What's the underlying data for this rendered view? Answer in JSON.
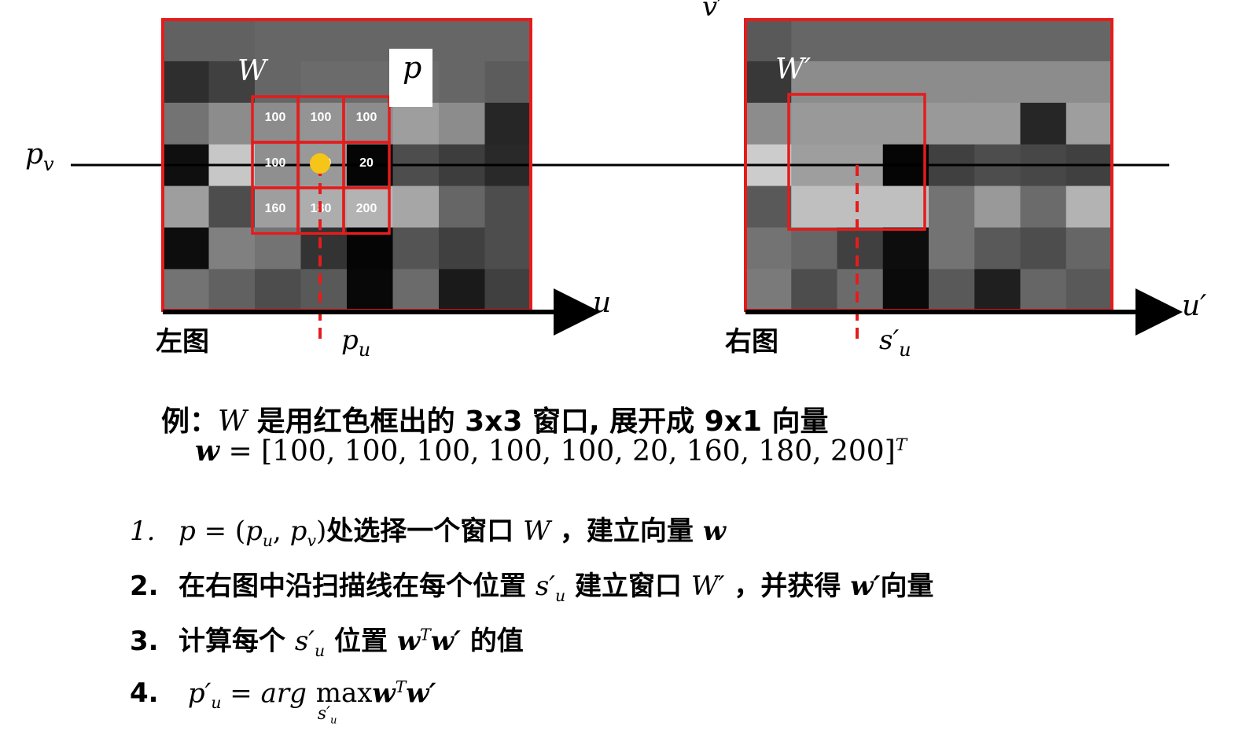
{
  "colors": {
    "frame": "#e41c1c",
    "axis": "#000000",
    "marker": "#f5c518",
    "background": "#ffffff"
  },
  "left_panel": {
    "window_label": "W",
    "point_label": "p",
    "caption": "左图",
    "axis_label": "u",
    "row_label": "p",
    "row_label_sub": "v",
    "col_label": "p",
    "col_label_sub": "u",
    "window_values": [
      "100",
      "100",
      "100",
      "100",
      "100",
      "20",
      "160",
      "180",
      "200"
    ],
    "grid_gray": [
      [
        0.38,
        0.38,
        0.4,
        0.4,
        0.4,
        0.4,
        0.4,
        0.4
      ],
      [
        0.18,
        0.25,
        0.4,
        0.42,
        0.42,
        0.42,
        0.4,
        0.36
      ],
      [
        0.45,
        0.55,
        0.55,
        0.58,
        0.55,
        0.62,
        0.55,
        0.15
      ],
      [
        0.06,
        0.78,
        0.56,
        0.6,
        0.02,
        0.3,
        0.24,
        0.16
      ],
      [
        0.62,
        0.3,
        0.62,
        0.68,
        0.7,
        0.65,
        0.4,
        0.3
      ],
      [
        0.05,
        0.5,
        0.45,
        0.2,
        0.02,
        0.33,
        0.25,
        0.3
      ],
      [
        0.45,
        0.38,
        0.3,
        0.35,
        0.03,
        0.42,
        0.1,
        0.25
      ]
    ]
  },
  "right_panel": {
    "window_label": "W′",
    "caption": "右图",
    "axis_label": "u′",
    "top_label": "v′",
    "scan_label": "s′",
    "scan_label_sub": "u",
    "grid_gray": [
      [
        0.35,
        0.4,
        0.4,
        0.4,
        0.4,
        0.4,
        0.4,
        0.4
      ],
      [
        0.22,
        0.55,
        0.55,
        0.55,
        0.55,
        0.55,
        0.55,
        0.55
      ],
      [
        0.55,
        0.6,
        0.6,
        0.6,
        0.6,
        0.6,
        0.15,
        0.62
      ],
      [
        0.8,
        0.62,
        0.62,
        0.02,
        0.25,
        0.3,
        0.28,
        0.25
      ],
      [
        0.35,
        0.75,
        0.75,
        0.75,
        0.45,
        0.6,
        0.42,
        0.7
      ],
      [
        0.45,
        0.4,
        0.25,
        0.05,
        0.45,
        0.35,
        0.3,
        0.4
      ],
      [
        0.48,
        0.3,
        0.42,
        0.04,
        0.35,
        0.12,
        0.4,
        0.35
      ]
    ]
  },
  "example": {
    "prefix": "例：",
    "W": "W",
    "text": "是用红色框出的 3x3 窗口, 展开成 9x1 向量",
    "w_symbol": "w",
    "equals": " = ",
    "vector": "[100, 100, 100, 100, 100, 20, 160, 180, 200]",
    "transpose": "T"
  },
  "steps": [
    {
      "num": "1.",
      "math_a": "p",
      "eq": " = (",
      "pu": "p",
      "pu_sub": "u",
      "comma": ", ",
      "pv": "p",
      "pv_sub": "v",
      "close": ")",
      "text1": "处选择一个窗口",
      "W": "W",
      "text2": "，建立向量",
      "w": "w"
    },
    {
      "num": "2.",
      "text1": "在右图中沿扫描线在每个位置",
      "s": "s′",
      "s_sub": "u",
      "text2": "建立窗口",
      "W": "W′",
      "text3": "，并获得",
      "w": "w′",
      "text4": "向量"
    },
    {
      "num": "3.",
      "text1": "计算每个",
      "s": "s′",
      "s_sub": "u",
      "text2": "位置",
      "w": "w",
      "T": "T",
      "w2": "w′",
      "text3": "的值"
    },
    {
      "num": "4.",
      "p": "p′",
      "p_sub": "u",
      "eq": " = ",
      "arg": "arg",
      "max": "max",
      "under": "s′",
      "under_sub": "u",
      "w": "w",
      "T": "T",
      "w2": "w′"
    }
  ]
}
